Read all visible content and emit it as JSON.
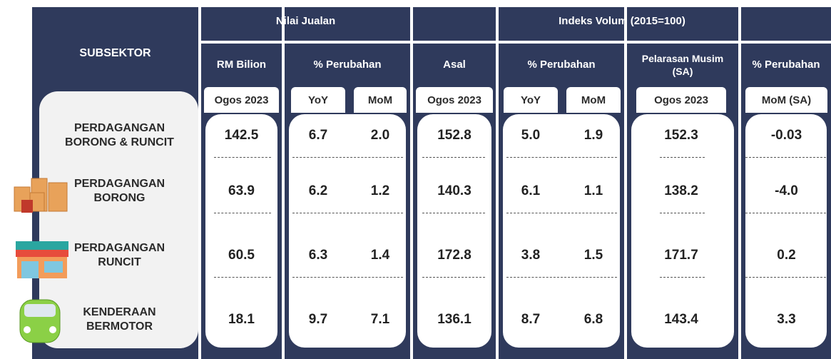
{
  "header": {
    "subsektor": "SUBSEKTOR",
    "groups": [
      "Nilai Jualan",
      "Indeks Volum (2015=100)"
    ],
    "columns": [
      "RM Bilion",
      "% Perubahan",
      "Asal",
      "% Perubahan",
      "Pelarasan Musim (SA)",
      "% Perubahan"
    ],
    "sub_columns": [
      "Ogos 2023",
      "YoY",
      "MoM",
      "Ogos 2023",
      "YoY",
      "MoM",
      "Ogos 2023",
      "MoM (SA)"
    ]
  },
  "rows": [
    {
      "label": "PERDAGANGAN BORONG & RUNCIT",
      "values": [
        "142.5",
        "6.7",
        "2.0",
        "152.8",
        "5.0",
        "1.9",
        "152.3",
        "-0.03"
      ]
    },
    {
      "label": "PERDAGANGAN BORONG",
      "values": [
        "63.9",
        "6.2",
        "1.2",
        "140.3",
        "6.1",
        "1.1",
        "138.2",
        "-4.0"
      ]
    },
    {
      "label": "PERDAGANGAN RUNCIT",
      "values": [
        "60.5",
        "6.3",
        "1.4",
        "172.8",
        "3.8",
        "1.5",
        "171.7",
        "0.2"
      ]
    },
    {
      "label": "KENDERAAN BERMOTOR",
      "values": [
        "18.1",
        "9.7",
        "7.1",
        "136.1",
        "8.7",
        "6.8",
        "143.4",
        "3.3"
      ]
    }
  ]
}
